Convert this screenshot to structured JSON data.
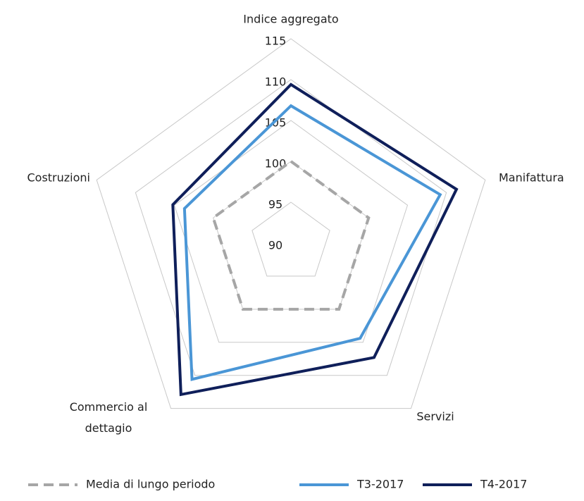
{
  "chart_data": {
    "type": "radar",
    "categories": [
      "Indice aggregato",
      "Manifattura",
      "Servizi",
      "Commercio al dettagio",
      "Costruzioni"
    ],
    "rlim": [
      90,
      115
    ],
    "rticks": [
      90,
      95,
      100,
      105,
      110,
      115
    ],
    "series": [
      {
        "name": "Media di lungo periodo",
        "color": "#a6a6a6",
        "dashed": true,
        "values": [
          100,
          100,
          100,
          100,
          100
        ]
      },
      {
        "name": "T3-2017",
        "color": "#4a96d6",
        "values": [
          106.8,
          109.2,
          104.4,
          110.6,
          103.7
        ]
      },
      {
        "name": "T4-2017",
        "color": "#0f1f5a",
        "values": [
          109.4,
          111.3,
          107.3,
          112.9,
          105.2
        ]
      }
    ],
    "grid": true,
    "legend": "bottom"
  }
}
